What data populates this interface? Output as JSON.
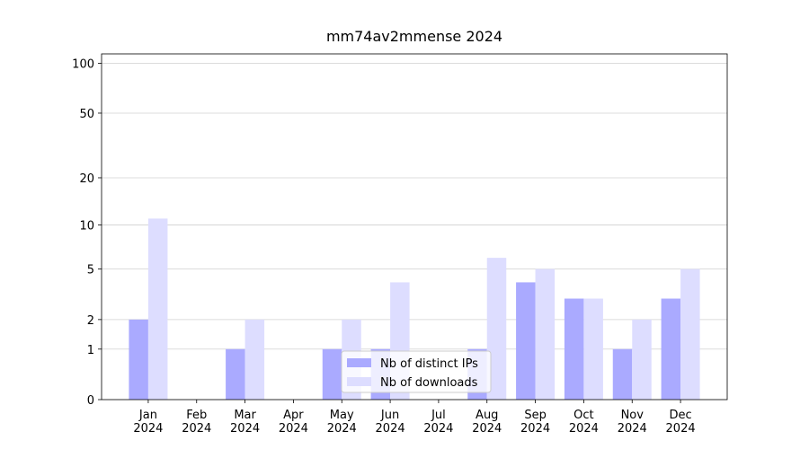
{
  "chart_data": {
    "type": "bar",
    "title": "mm74av2mmense 2024",
    "categories": [
      "Jan\n2024",
      "Feb\n2024",
      "Mar\n2024",
      "Apr\n2024",
      "May\n2024",
      "Jun\n2024",
      "Jul\n2024",
      "Aug\n2024",
      "Sep\n2024",
      "Oct\n2024",
      "Nov\n2024",
      "Dec\n2024"
    ],
    "series": [
      {
        "name": "Nb of distinct IPs",
        "color": "#aaaaff",
        "values": [
          2,
          0,
          1,
          0,
          1,
          1,
          0,
          1,
          4,
          3,
          1,
          3
        ]
      },
      {
        "name": "Nb of downloads",
        "color": "#ddddff",
        "values": [
          11,
          0,
          2,
          0,
          2,
          4,
          0,
          6,
          5,
          3,
          2,
          5
        ]
      }
    ],
    "yscale": "log1p",
    "ylim": [
      0,
      114
    ],
    "yticks": [
      0,
      1,
      2,
      5,
      10,
      20,
      50,
      100
    ],
    "grid": true,
    "legend": "lower center"
  }
}
